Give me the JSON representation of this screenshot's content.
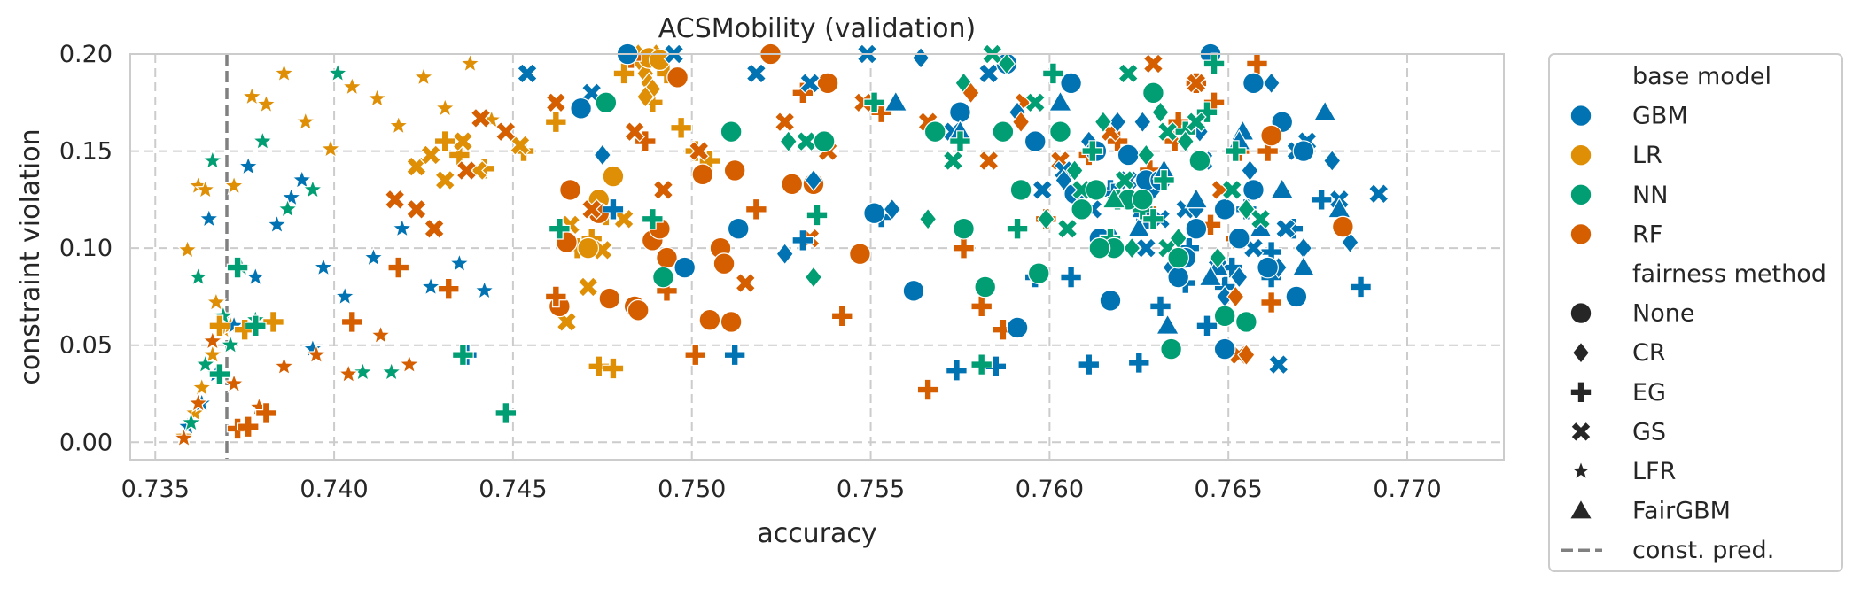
{
  "chart_data": {
    "type": "scatter",
    "title": "ACSMobility (validation)",
    "xlabel": "accuracy",
    "ylabel": "constraint violation",
    "xlim": [
      0.7343,
      0.7727
    ],
    "ylim": [
      -0.009,
      0.2
    ],
    "xticks": [
      "0.735",
      "0.740",
      "0.745",
      "0.750",
      "0.755",
      "0.760",
      "0.765",
      "0.770"
    ],
    "yticks": [
      "0.00",
      "0.05",
      "0.10",
      "0.15",
      "0.20"
    ],
    "grid": true,
    "legend_position": "outside-right",
    "reference_line": {
      "label": "const. pred.",
      "x": 0.737,
      "style": "dashed",
      "color": "#808080"
    },
    "legend": {
      "color_title": "base model",
      "shape_title": "fairness method"
    },
    "base_models": [
      {
        "name": "GBM",
        "color": "#0173b2"
      },
      {
        "name": "LR",
        "color": "#de8f05"
      },
      {
        "name": "NN",
        "color": "#029e73"
      },
      {
        "name": "RF",
        "color": "#d55e00"
      }
    ],
    "fairness_methods": [
      {
        "name": "None",
        "marker": "circle"
      },
      {
        "name": "CR",
        "marker": "diamond"
      },
      {
        "name": "EG",
        "marker": "plus"
      },
      {
        "name": "GS",
        "marker": "x"
      },
      {
        "name": "LFR",
        "marker": "star"
      },
      {
        "name": "FairGBM",
        "marker": "triangle"
      }
    ],
    "series": [
      {
        "model": "LR",
        "method": "LFR",
        "x": [
          0.7358,
          0.7361,
          0.7363,
          0.7366,
          0.7369,
          0.7372,
          0.7377,
          0.7381,
          0.7386,
          0.7392,
          0.7399,
          0.7405,
          0.7412,
          0.7418,
          0.7425,
          0.7431,
          0.7438,
          0.7444,
          0.7359,
          0.7362,
          0.7364,
          0.7367,
          0.7371
        ],
        "y": [
          0.003,
          0.015,
          0.028,
          0.045,
          0.058,
          0.132,
          0.178,
          0.174,
          0.19,
          0.165,
          0.151,
          0.183,
          0.177,
          0.163,
          0.188,
          0.172,
          0.195,
          0.166,
          0.099,
          0.132,
          0.13,
          0.072,
          0.06
        ]
      },
      {
        "model": "GBM",
        "method": "LFR",
        "x": [
          0.7359,
          0.7363,
          0.7367,
          0.7372,
          0.7378,
          0.7384,
          0.7391,
          0.7397,
          0.7403,
          0.7411,
          0.7419,
          0.7427,
          0.7435,
          0.7442,
          0.7388,
          0.7394,
          0.7376,
          0.7365
        ],
        "y": [
          0.008,
          0.02,
          0.035,
          0.06,
          0.085,
          0.112,
          0.135,
          0.09,
          0.075,
          0.095,
          0.11,
          0.08,
          0.092,
          0.078,
          0.126,
          0.048,
          0.142,
          0.115
        ]
      },
      {
        "model": "NN",
        "method": "LFR",
        "x": [
          0.736,
          0.7364,
          0.7369,
          0.7374,
          0.738,
          0.7387,
          0.7394,
          0.7401,
          0.7408,
          0.7416,
          0.7362,
          0.7366,
          0.7371,
          0.7378
        ],
        "y": [
          0.01,
          0.04,
          0.065,
          0.09,
          0.155,
          0.12,
          0.13,
          0.19,
          0.036,
          0.036,
          0.085,
          0.145,
          0.05,
          0.063
        ]
      },
      {
        "model": "RF",
        "method": "LFR",
        "x": [
          0.7358,
          0.7362,
          0.7366,
          0.7372,
          0.7379,
          0.7386,
          0.7395,
          0.7404,
          0.7413,
          0.7421
        ],
        "y": [
          0.002,
          0.02,
          0.052,
          0.03,
          0.018,
          0.039,
          0.045,
          0.035,
          0.055,
          0.04
        ]
      },
      {
        "model": "LR",
        "method": "EG",
        "x": [
          0.7368,
          0.7375,
          0.7383,
          0.7431,
          0.7435,
          0.7442,
          0.7453,
          0.7462,
          0.7468,
          0.7472,
          0.7476,
          0.7481,
          0.7486,
          0.7489,
          0.7493,
          0.7497,
          0.7501,
          0.7505,
          0.7474,
          0.7478
        ],
        "y": [
          0.06,
          0.058,
          0.062,
          0.155,
          0.148,
          0.141,
          0.15,
          0.165,
          0.1,
          0.105,
          0.117,
          0.19,
          0.195,
          0.175,
          0.19,
          0.162,
          0.15,
          0.145,
          0.039,
          0.038
        ]
      },
      {
        "model": "LR",
        "method": "GS",
        "x": [
          0.7423,
          0.7427,
          0.7431,
          0.7436,
          0.744,
          0.7452,
          0.7466,
          0.7475,
          0.7481,
          0.7471,
          0.7465
        ],
        "y": [
          0.142,
          0.148,
          0.135,
          0.155,
          0.14,
          0.153,
          0.112,
          0.099,
          0.115,
          0.08,
          0.062
        ]
      },
      {
        "model": "LR",
        "method": "CR",
        "x": [
          0.7485,
          0.7486,
          0.7487,
          0.7488,
          0.7489,
          0.749,
          0.7487,
          0.7488
        ],
        "y": [
          0.2,
          0.195,
          0.19,
          0.185,
          0.182,
          0.2,
          0.178,
          0.198
        ]
      },
      {
        "model": "LR",
        "method": "None",
        "x": [
          0.7474,
          0.7478,
          0.7488,
          0.7491,
          0.7471
        ],
        "y": [
          0.125,
          0.137,
          0.198,
          0.197,
          0.1
        ]
      },
      {
        "model": "RF",
        "method": "None",
        "x": [
          0.7466,
          0.7474,
          0.7484,
          0.7489,
          0.7491,
          0.7493,
          0.7496,
          0.7503,
          0.7508,
          0.7509,
          0.7511,
          0.7522,
          0.7477,
          0.7463,
          0.7512,
          0.7534,
          0.7528,
          0.7538,
          0.7547,
          0.7465,
          0.7505,
          0.7485
        ],
        "y": [
          0.13,
          0.118,
          0.07,
          0.104,
          0.11,
          0.095,
          0.188,
          0.138,
          0.1,
          0.092,
          0.062,
          0.2,
          0.074,
          0.07,
          0.14,
          0.133,
          0.133,
          0.185,
          0.097,
          0.103,
          0.063,
          0.068
        ]
      },
      {
        "model": "RF",
        "method": "EG",
        "x": [
          0.7373,
          0.7376,
          0.7381,
          0.7405,
          0.7418,
          0.7432,
          0.7462,
          0.7483,
          0.7487,
          0.7493,
          0.7501,
          0.7518,
          0.7531,
          0.7542,
          0.7553,
          0.7566,
          0.7576,
          0.7581,
          0.7587,
          0.7599,
          0.7611,
          0.7619,
          0.7627,
          0.7635,
          0.7641,
          0.7646,
          0.7653,
          0.7658,
          0.7662,
          0.7636,
          0.7628,
          0.7645,
          0.7652,
          0.7661
        ],
        "y": [
          0.007,
          0.008,
          0.015,
          0.062,
          0.09,
          0.079,
          0.075,
          0.198,
          0.155,
          0.078,
          0.045,
          0.12,
          0.18,
          0.065,
          0.17,
          0.027,
          0.1,
          0.07,
          0.058,
          0.115,
          0.148,
          0.155,
          0.12,
          0.155,
          0.185,
          0.175,
          0.15,
          0.195,
          0.072,
          0.165,
          0.14,
          0.112,
          0.105,
          0.15
        ]
      },
      {
        "model": "RF",
        "method": "GS",
        "x": [
          0.7417,
          0.7428,
          0.7441,
          0.7448,
          0.7462,
          0.7472,
          0.7484,
          0.7492,
          0.7502,
          0.7515,
          0.7526,
          0.7533,
          0.7538,
          0.7548,
          0.7566,
          0.7583,
          0.7593,
          0.7603,
          0.7617,
          0.7629,
          0.7641,
          0.7653,
          0.7648,
          0.7423,
          0.7437
        ],
        "y": [
          0.125,
          0.11,
          0.167,
          0.16,
          0.175,
          0.12,
          0.16,
          0.13,
          0.15,
          0.082,
          0.165,
          0.105,
          0.15,
          0.175,
          0.165,
          0.145,
          0.175,
          0.145,
          0.16,
          0.195,
          0.185,
          0.045,
          0.13,
          0.12,
          0.14
        ]
      },
      {
        "model": "GBM",
        "method": "EG",
        "x": [
          0.7437,
          0.7478,
          0.7512,
          0.7531,
          0.7553,
          0.7574,
          0.7585,
          0.7596,
          0.7606,
          0.7611,
          0.7617,
          0.7625,
          0.7631,
          0.7638,
          0.7644,
          0.7649,
          0.7655,
          0.7662,
          0.7668,
          0.7676,
          0.7687,
          0.7662,
          0.7651,
          0.7639,
          0.7627,
          0.7618
        ],
        "y": [
          0.045,
          0.12,
          0.045,
          0.104,
          0.116,
          0.037,
          0.039,
          0.085,
          0.085,
          0.04,
          0.13,
          0.041,
          0.07,
          0.082,
          0.06,
          0.08,
          0.12,
          0.085,
          0.11,
          0.125,
          0.08,
          0.098,
          0.09,
          0.1,
          0.115,
          0.128
        ]
      },
      {
        "model": "GBM",
        "method": "GS",
        "x": [
          0.7454,
          0.7472,
          0.7495,
          0.7518,
          0.7533,
          0.7549,
          0.7573,
          0.7583,
          0.7598,
          0.7604,
          0.7612,
          0.7622,
          0.7631,
          0.7638,
          0.7643,
          0.7651,
          0.7657,
          0.7664,
          0.7669,
          0.7672,
          0.7681,
          0.7692,
          0.7666,
          0.7647,
          0.7627
        ],
        "y": [
          0.19,
          0.18,
          0.2,
          0.19,
          0.185,
          0.2,
          0.16,
          0.19,
          0.13,
          0.14,
          0.12,
          0.135,
          0.115,
          0.12,
          0.145,
          0.13,
          0.1,
          0.04,
          0.15,
          0.155,
          0.125,
          0.128,
          0.11,
          0.09,
          0.1
        ]
      },
      {
        "model": "GBM",
        "method": "CR",
        "x": [
          0.7475,
          0.7526,
          0.7534,
          0.7556,
          0.7564,
          0.7591,
          0.7604,
          0.7611,
          0.7618,
          0.7626,
          0.7634,
          0.7642,
          0.7649,
          0.7656,
          0.7662,
          0.7671,
          0.7679,
          0.7684,
          0.7664,
          0.7653,
          0.7641,
          0.7629,
          0.7619
        ],
        "y": [
          0.148,
          0.097,
          0.135,
          0.12,
          0.198,
          0.17,
          0.135,
          0.155,
          0.105,
          0.165,
          0.09,
          0.16,
          0.075,
          0.14,
          0.185,
          0.1,
          0.145,
          0.103,
          0.09,
          0.085,
          0.12,
          0.13,
          0.165
        ]
      },
      {
        "model": "GBM",
        "method": "None",
        "x": [
          0.7469,
          0.7482,
          0.7498,
          0.7513,
          0.7551,
          0.7562,
          0.7575,
          0.7588,
          0.7591,
          0.7603,
          0.7607,
          0.7613,
          0.7617,
          0.7622,
          0.7627,
          0.7631,
          0.7636,
          0.7641,
          0.7645,
          0.7649,
          0.7653,
          0.7657,
          0.7661,
          0.7665,
          0.7669,
          0.7671,
          0.7657,
          0.7649,
          0.7638,
          0.7626,
          0.7614,
          0.7606,
          0.7596
        ],
        "y": [
          0.172,
          0.2,
          0.09,
          0.11,
          0.118,
          0.078,
          0.17,
          0.195,
          0.059,
          0.16,
          0.128,
          0.15,
          0.073,
          0.148,
          0.135,
          0.135,
          0.085,
          0.11,
          0.2,
          0.048,
          0.105,
          0.13,
          0.09,
          0.165,
          0.075,
          0.15,
          0.185,
          0.12,
          0.095,
          0.12,
          0.105,
          0.185,
          0.155
        ]
      },
      {
        "model": "GBM",
        "method": "FairGBM",
        "x": [
          0.7557,
          0.7575,
          0.7603,
          0.7618,
          0.7626,
          0.7633,
          0.7641,
          0.7647,
          0.7654,
          0.7659,
          0.7665,
          0.7671,
          0.7677,
          0.7681,
          0.7653,
          0.7645,
          0.7632,
          0.7625
        ],
        "y": [
          0.175,
          0.16,
          0.175,
          0.105,
          0.12,
          0.06,
          0.125,
          0.09,
          0.16,
          0.11,
          0.13,
          0.09,
          0.17,
          0.12,
          0.155,
          0.085,
          0.14,
          0.11
        ]
      },
      {
        "model": "NN",
        "method": "EG",
        "x": [
          0.7368,
          0.7373,
          0.7378,
          0.7436,
          0.7448,
          0.7463,
          0.7489,
          0.7535,
          0.7551,
          0.7575,
          0.7581,
          0.7591,
          0.7601,
          0.7612,
          0.7619,
          0.7626,
          0.7632,
          0.7638,
          0.7646,
          0.7652,
          0.7644,
          0.7629,
          0.7617
        ],
        "y": [
          0.035,
          0.09,
          0.06,
          0.045,
          0.015,
          0.11,
          0.115,
          0.117,
          0.175,
          0.155,
          0.04,
          0.11,
          0.19,
          0.15,
          0.125,
          0.12,
          0.135,
          0.16,
          0.195,
          0.15,
          0.17,
          0.115,
          0.105
        ]
      },
      {
        "model": "NN",
        "method": "GS",
        "x": [
          0.7532,
          0.7573,
          0.7584,
          0.7596,
          0.7609,
          0.7622,
          0.7633,
          0.7641,
          0.7651,
          0.7659,
          0.7633,
          0.7621,
          0.7605
        ],
        "y": [
          0.155,
          0.145,
          0.2,
          0.175,
          0.13,
          0.19,
          0.16,
          0.165,
          0.13,
          0.115,
          0.1,
          0.135,
          0.11
        ]
      },
      {
        "model": "NN",
        "method": "CR",
        "x": [
          0.7527,
          0.7534,
          0.7566,
          0.7576,
          0.7588,
          0.7599,
          0.7607,
          0.7615,
          0.7623,
          0.7631,
          0.7638,
          0.7647,
          0.7655,
          0.7636,
          0.7627
        ],
        "y": [
          0.155,
          0.085,
          0.115,
          0.185,
          0.195,
          0.115,
          0.14,
          0.165,
          0.1,
          0.17,
          0.155,
          0.095,
          0.12,
          0.105,
          0.148
        ]
      },
      {
        "model": "NN",
        "method": "None",
        "x": [
          0.7476,
          0.7492,
          0.7511,
          0.7537,
          0.7568,
          0.7576,
          0.7582,
          0.7587,
          0.7592,
          0.7597,
          0.7609,
          0.7613,
          0.7618,
          0.7622,
          0.7629,
          0.7634,
          0.7642,
          0.7649,
          0.7655,
          0.7636,
          0.7626,
          0.7614,
          0.7603
        ],
        "y": [
          0.175,
          0.085,
          0.16,
          0.155,
          0.16,
          0.11,
          0.08,
          0.16,
          0.13,
          0.087,
          0.12,
          0.13,
          0.1,
          0.125,
          0.18,
          0.048,
          0.145,
          0.065,
          0.062,
          0.095,
          0.125,
          0.1,
          0.16
        ]
      },
      {
        "model": "RF",
        "method": "CR",
        "x": [
          0.7578,
          0.7592,
          0.7655,
          0.7652
        ],
        "y": [
          0.18,
          0.165,
          0.045,
          0.075
        ]
      },
      {
        "model": "NN",
        "method": "FairGBM",
        "x": [
          0.7618
        ],
        "y": [
          0.125
        ]
      },
      {
        "model": "RF",
        "method": "None-extra",
        "x": [
          0.7682,
          0.7662
        ],
        "y": [
          0.111,
          0.158
        ]
      }
    ]
  }
}
